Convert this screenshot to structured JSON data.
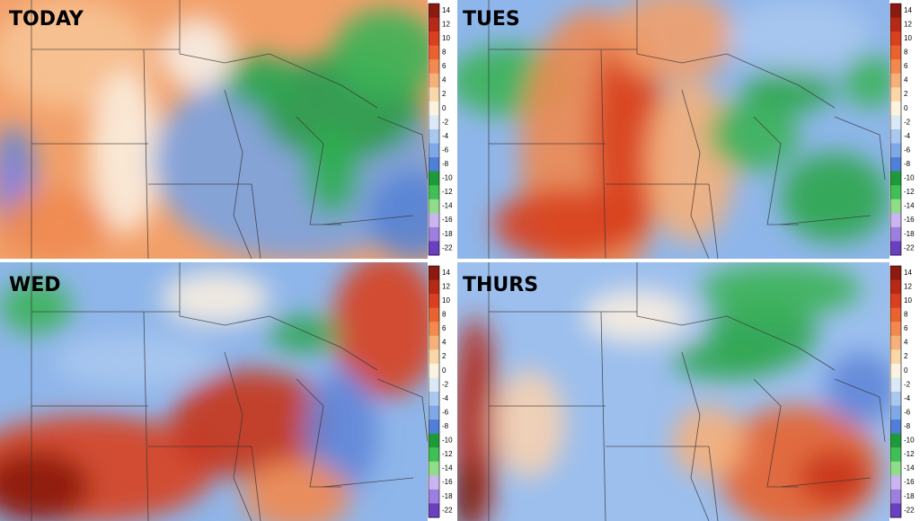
{
  "panels": [
    {
      "label": "TODAY"
    },
    {
      "label": "TUES"
    },
    {
      "label": "WED"
    },
    {
      "label": "THURS"
    }
  ],
  "colorbar": {
    "ticks": [
      14,
      12,
      10,
      8,
      6,
      4,
      2,
      0,
      -2,
      -4,
      -6,
      -8,
      -10,
      -12,
      -14,
      -16,
      -18,
      -22
    ],
    "colors": [
      "#8b1a10",
      "#b52a17",
      "#d8401f",
      "#e8632f",
      "#f28a4f",
      "#f6b07a",
      "#f9d7a8",
      "#fbf3df",
      "#dbe8f6",
      "#a9c8ef",
      "#7ea8e6",
      "#4f7fd6",
      "#1f9a3a",
      "#3fbf55",
      "#8fdd8a",
      "#c9b6f0",
      "#9d7fe0",
      "#6a3fc0"
    ]
  }
}
